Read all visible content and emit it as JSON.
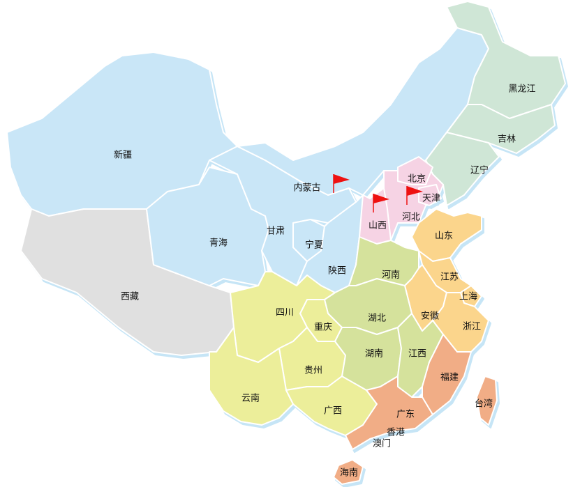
{
  "colors": {
    "northwest": "#c9e6f7",
    "northeast": "#cfe6d6",
    "north": "#f6d3e4",
    "tibet": "#e0e0e0",
    "southwest": "#ecee9a",
    "central": "#d5e29c",
    "east": "#fbd58c",
    "south": "#f1ad86",
    "flag": "#ee1111"
  },
  "provinces": [
    {
      "id": "xinjiang",
      "name": "新疆",
      "group": "northwest"
    },
    {
      "id": "xizang",
      "name": "西藏",
      "group": "tibet"
    },
    {
      "id": "qinghai",
      "name": "青海",
      "group": "northwest"
    },
    {
      "id": "gansu",
      "name": "甘肃",
      "group": "northwest"
    },
    {
      "id": "ningxia",
      "name": "宁夏",
      "group": "northwest"
    },
    {
      "id": "neimenggu",
      "name": "内蒙古",
      "group": "northwest"
    },
    {
      "id": "shaanxi",
      "name": "陕西",
      "group": "northwest"
    },
    {
      "id": "heilongjiang",
      "name": "黑龙江",
      "group": "northeast"
    },
    {
      "id": "jilin",
      "name": "吉林",
      "group": "northeast"
    },
    {
      "id": "liaoning",
      "name": "辽宁",
      "group": "northeast"
    },
    {
      "id": "hebei",
      "name": "河北",
      "group": "north"
    },
    {
      "id": "beijing",
      "name": "北京",
      "group": "north"
    },
    {
      "id": "tianjin",
      "name": "天津",
      "group": "north"
    },
    {
      "id": "shanxi",
      "name": "山西",
      "group": "north"
    },
    {
      "id": "shandong",
      "name": "山东",
      "group": "east"
    },
    {
      "id": "henan",
      "name": "河南",
      "group": "central"
    },
    {
      "id": "jiangsu",
      "name": "江苏",
      "group": "east"
    },
    {
      "id": "shanghai",
      "name": "上海",
      "group": "east"
    },
    {
      "id": "anhui",
      "name": "安徽",
      "group": "east"
    },
    {
      "id": "zhejiang",
      "name": "浙江",
      "group": "east"
    },
    {
      "id": "hubei",
      "name": "湖北",
      "group": "central"
    },
    {
      "id": "chongqing",
      "name": "重庆",
      "group": "southwest"
    },
    {
      "id": "sichuan",
      "name": "四川",
      "group": "southwest"
    },
    {
      "id": "guizhou",
      "name": "贵州",
      "group": "southwest"
    },
    {
      "id": "yunnan",
      "name": "云南",
      "group": "southwest"
    },
    {
      "id": "guangxi",
      "name": "广西",
      "group": "southwest"
    },
    {
      "id": "hunan",
      "name": "湖南",
      "group": "central"
    },
    {
      "id": "jiangxi",
      "name": "江西",
      "group": "central"
    },
    {
      "id": "fujian",
      "name": "福建",
      "group": "south"
    },
    {
      "id": "guangdong",
      "name": "广东",
      "group": "south"
    },
    {
      "id": "hainan",
      "name": "海南",
      "group": "south"
    },
    {
      "id": "taiwan",
      "name": "台湾",
      "group": "south"
    },
    {
      "id": "xianggang",
      "name": "香港",
      "group": "south"
    },
    {
      "id": "aomen",
      "name": "澳门",
      "group": "south"
    }
  ],
  "flags": [
    "neimenggu",
    "shanxi",
    "hebei"
  ]
}
